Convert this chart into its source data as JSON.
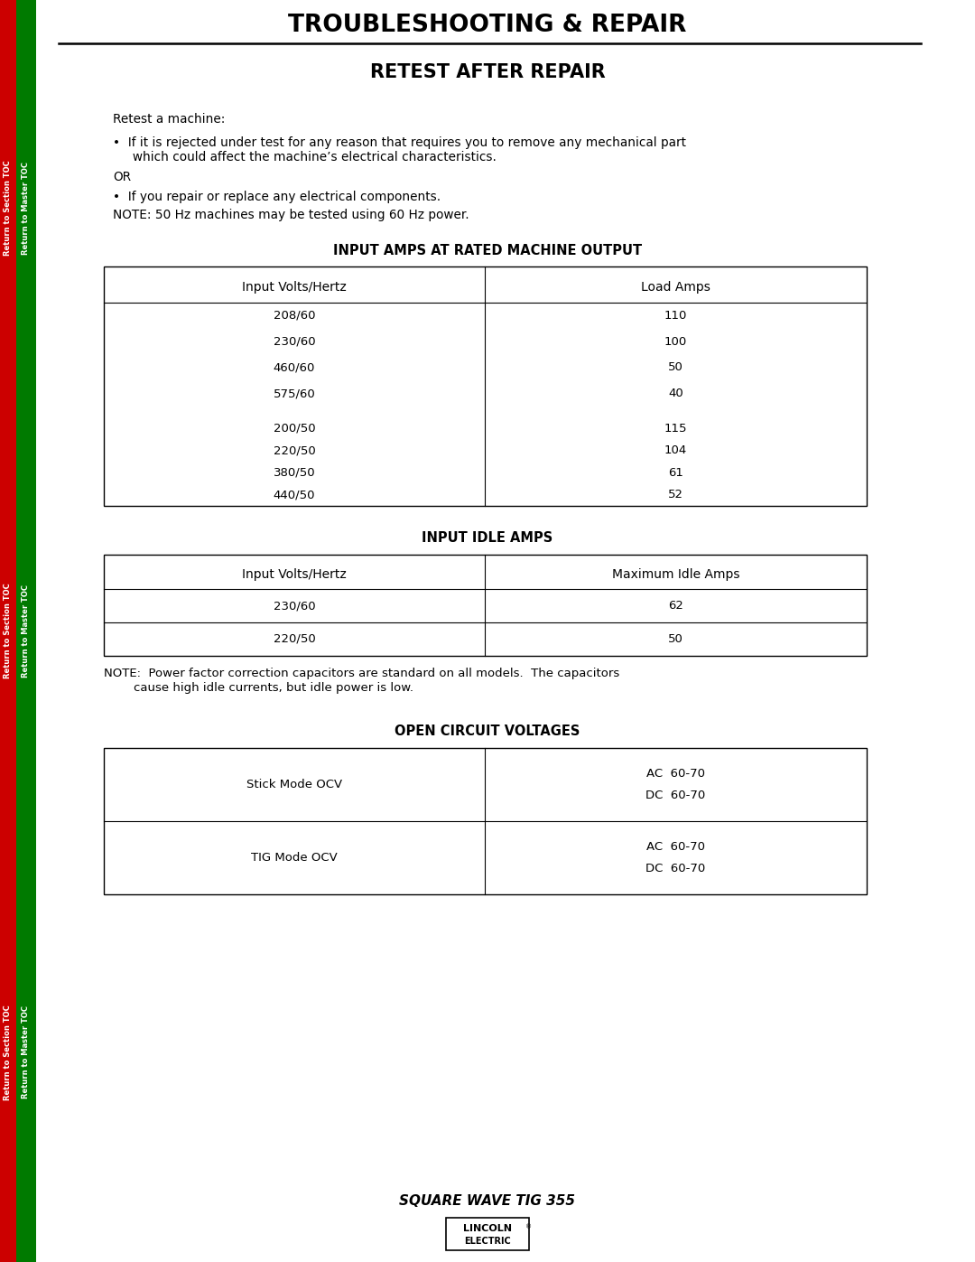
{
  "page_title": "TROUBLESHOOTING & REPAIR",
  "section_title": "RETEST AFTER REPAIR",
  "body_lines": [
    "Retest a machine:",
    "•  If it is rejected under test for any reason that requires you to remove any mechanical part",
    "     which could affect the machine’s electrical characteristics.",
    "OR",
    "•  If you repair or replace any electrical components.",
    "NOTE: 50 Hz machines may be tested using 60 Hz power."
  ],
  "table1_title": "INPUT AMPS AT RATED MACHINE OUTPUT",
  "table1_col_headers": [
    "Input Volts/Hertz",
    "Load Amps"
  ],
  "table1_group1": [
    "208/60",
    "230/60",
    "460/60",
    "575/60"
  ],
  "table1_group1_amps": [
    "110",
    "100",
    "50",
    "40"
  ],
  "table1_group2": [
    "200/50",
    "220/50",
    "380/50",
    "440/50"
  ],
  "table1_group2_amps": [
    "115",
    "104",
    "61",
    "52"
  ],
  "table2_title": "INPUT IDLE AMPS",
  "table2_col_headers": [
    "Input Volts/Hertz",
    "Maximum Idle Amps"
  ],
  "table2_rows": [
    [
      "230/60",
      "62"
    ],
    [
      "220/50",
      "50"
    ]
  ],
  "note2_line1": "NOTE:  Power factor correction capacitors are standard on all models.  The capacitors",
  "note2_line2": "          cause high idle currents, but idle power is low.",
  "table3_title": "OPEN CIRCUIT VOLTAGES",
  "table3_rows": [
    [
      "Stick Mode OCV",
      "AC  60-70",
      "DC  60-70"
    ],
    [
      "TIG Mode OCV",
      "AC  60-70",
      "DC  60-70"
    ]
  ],
  "footer_model": "SQUARE WAVE TIG 355",
  "footer_brand1": "LINCOLN",
  "footer_brand2": "ELECTRIC",
  "sidebar_red": "#cc0000",
  "sidebar_green": "#007a00",
  "sidebar_label1": "Return to Section TOC",
  "sidebar_label2": "Return to Master TOC",
  "bg_color": "#ffffff",
  "line_color": "#000000",
  "text_color": "#000000"
}
